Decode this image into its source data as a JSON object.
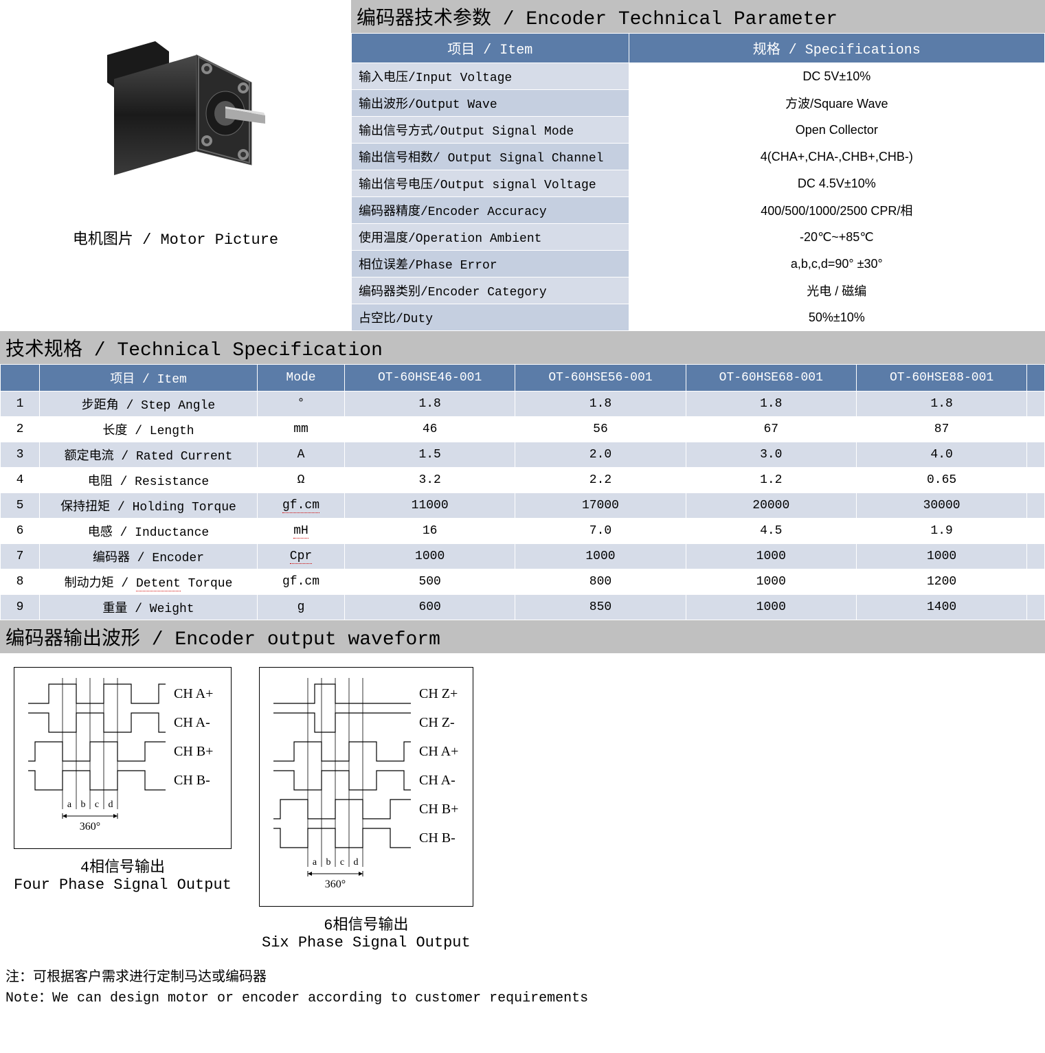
{
  "encoder_header": "编码器技术参数 / Encoder Technical Parameter",
  "motor_caption": "电机图片 / Motor Picture",
  "encoder_table": {
    "headers": [
      "项目 / Item",
      "规格 / Specifications"
    ],
    "rows": [
      {
        "label": "输入电压/Input Voltage",
        "value": "DC 5V±10%"
      },
      {
        "label": "输出波形/Output Wave",
        "value": "方波/Square Wave"
      },
      {
        "label": "输出信号方式/Output Signal Mode",
        "value": "Open Collector"
      },
      {
        "label": "输出信号相数/ Output Signal Channel",
        "value": "4(CHA+,CHA-,CHB+,CHB-)"
      },
      {
        "label": "输出信号电压/Output signal Voltage",
        "value": "DC 4.5V±10%"
      },
      {
        "label": "编码器精度/Encoder Accuracy",
        "value": "400/500/1000/2500 CPR/相"
      },
      {
        "label": "使用温度/Operation Ambient",
        "value": "-20℃~+85℃"
      },
      {
        "label": "相位误差/Phase Error",
        "value": "a,b,c,d=90° ±30°"
      },
      {
        "label": "编码器类别/Encoder Category",
        "value": "光电 / 磁编"
      },
      {
        "label": "占空比/Duty",
        "value": "50%±10%"
      }
    ]
  },
  "spec_header": "技术规格 / Technical Specification",
  "spec_table": {
    "headers": [
      "",
      "项目 / Item",
      "Mode",
      "OT-60HSE46-001",
      "OT-60HSE56-001",
      "OT-60HSE68-001",
      "OT-60HSE88-001",
      ""
    ],
    "rows": [
      {
        "idx": "1",
        "item": "步距角 / Step Angle",
        "mode": "°",
        "v": [
          "1.8",
          "1.8",
          "1.8",
          "1.8"
        ]
      },
      {
        "idx": "2",
        "item": "长度 / Length",
        "mode": "mm",
        "v": [
          "46",
          "56",
          "67",
          "87"
        ]
      },
      {
        "idx": "3",
        "item": "额定电流 / Rated Current",
        "mode": "A",
        "v": [
          "1.5",
          "2.0",
          "3.0",
          "4.0"
        ]
      },
      {
        "idx": "4",
        "item": "电阻 / Resistance",
        "mode": "Ω",
        "v": [
          "3.2",
          "2.2",
          "1.2",
          "0.65"
        ]
      },
      {
        "idx": "5",
        "item": "保持扭矩 / Holding Torque",
        "mode": "gf.cm",
        "v": [
          "11000",
          "17000",
          "20000",
          "30000"
        ],
        "dotted": true
      },
      {
        "idx": "6",
        "item": "电感 / Inductance",
        "mode": "mH",
        "v": [
          "16",
          "7.0",
          "4.5",
          "1.9"
        ],
        "dotted": true
      },
      {
        "idx": "7",
        "item": "编码器 / Encoder",
        "mode": "Cpr",
        "v": [
          "1000",
          "1000",
          "1000",
          "1000"
        ],
        "dotted": true
      },
      {
        "idx": "8",
        "item": "制动力矩 / Detent Torque",
        "mode": "gf.cm",
        "v": [
          "500",
          "800",
          "1000",
          "1200"
        ],
        "dotted_item": "Detent"
      },
      {
        "idx": "9",
        "item": "重量 / Weight",
        "mode": "g",
        "v": [
          "600",
          "850",
          "1000",
          "1400"
        ]
      }
    ]
  },
  "waveform_header": "编码器输出波形 / Encoder output waveform",
  "waveform": {
    "four": {
      "channels": [
        "CH A+",
        "CH A-",
        "CH B+",
        "CH B-"
      ],
      "caption_cn": "4相信号输出",
      "caption_en": "Four Phase Signal Output",
      "degree": "360°",
      "letters": [
        "a",
        "b",
        "c",
        "d"
      ]
    },
    "six": {
      "channels": [
        "CH Z+",
        "CH Z-",
        "CH A+",
        "CH A-",
        "CH B+",
        "CH B-"
      ],
      "caption_cn": "6相信号输出",
      "caption_en": "Six Phase Signal Output",
      "degree": "360°",
      "letters": [
        "a",
        "b",
        "c",
        "d"
      ]
    }
  },
  "footnote": {
    "cn": "注：可根据客户需求进行定制马达或编码器",
    "en": "Note：We can design motor or encoder according to customer requirements"
  },
  "colors": {
    "header_bg": "#c0c0c0",
    "th_bg": "#5b7ca8",
    "row_odd": "#d6dce8",
    "row_even": "#ffffff"
  }
}
